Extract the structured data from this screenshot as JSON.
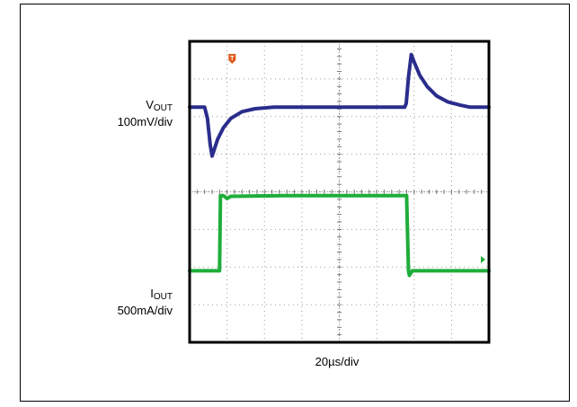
{
  "figure": {
    "channels": [
      {
        "name_base": "V",
        "name_sub": "OUT",
        "scale_label": "100mV/div",
        "color": "#2a2d8c"
      },
      {
        "name_base": "I",
        "name_sub": "OUT",
        "scale_label": "500mA/div",
        "color": "#1fad3a"
      }
    ],
    "time_scale_label": "20µs/div",
    "trigger_marker": "T",
    "trigger_color": "#e05a1a"
  },
  "chart_data": {
    "type": "line",
    "title": "",
    "xlabel": "20µs/div",
    "ylabel": "",
    "x_unit": "µs",
    "xlim": [
      0,
      160
    ],
    "grid": true,
    "divisions": {
      "x": 8,
      "y": 8
    },
    "series": [
      {
        "name": "VOUT",
        "units": "mV",
        "scale_per_div": 100,
        "points": [
          [
            0,
            0
          ],
          [
            8,
            0
          ],
          [
            9.5,
            -30
          ],
          [
            11,
            -100
          ],
          [
            12,
            -130
          ],
          [
            13,
            -115
          ],
          [
            15,
            -85
          ],
          [
            18,
            -55
          ],
          [
            22,
            -30
          ],
          [
            28,
            -12
          ],
          [
            35,
            -4
          ],
          [
            45,
            0
          ],
          [
            115,
            0
          ],
          [
            115.8,
            10
          ],
          [
            117,
            80
          ],
          [
            118.5,
            140
          ],
          [
            120,
            120
          ],
          [
            123,
            85
          ],
          [
            127,
            55
          ],
          [
            132,
            30
          ],
          [
            138,
            14
          ],
          [
            145,
            5
          ],
          [
            150,
            0
          ],
          [
            160,
            0
          ]
        ]
      },
      {
        "name": "IOUT",
        "units": "mA",
        "scale_per_div": 500,
        "points": [
          [
            0,
            0
          ],
          [
            16,
            0
          ],
          [
            16.5,
            1000
          ],
          [
            18,
            1000
          ],
          [
            20,
            960
          ],
          [
            22,
            990
          ],
          [
            50,
            1000
          ],
          [
            116,
            1000
          ],
          [
            117,
            0
          ],
          [
            117.5,
            -60
          ],
          [
            119,
            0
          ],
          [
            160,
            0
          ]
        ]
      }
    ]
  }
}
